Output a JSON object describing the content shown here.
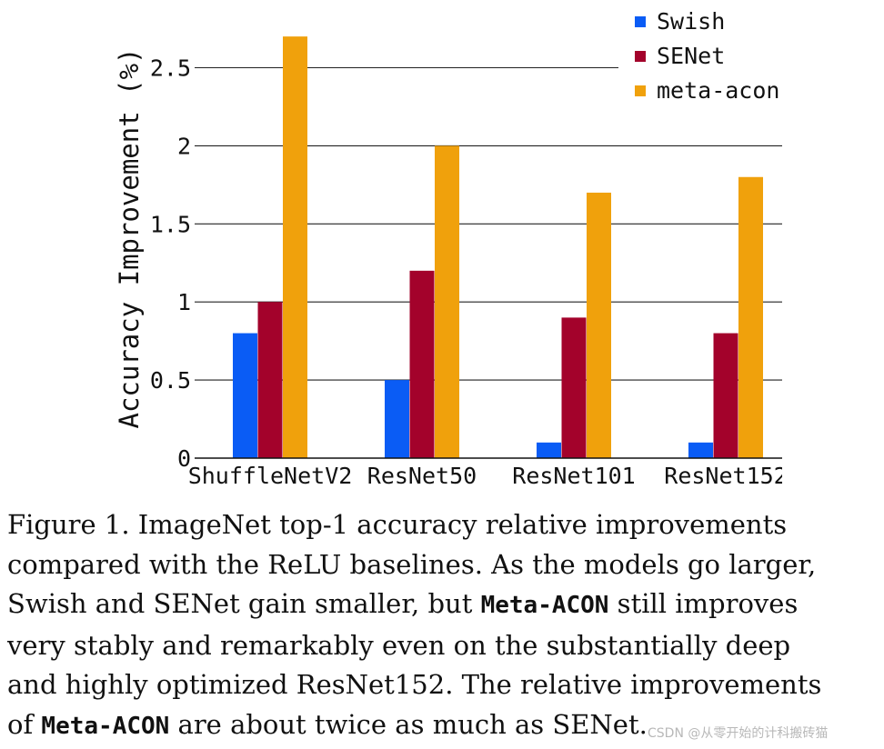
{
  "chart_data": {
    "type": "bar",
    "title": "",
    "xlabel": "",
    "ylabel": "Accuracy Improvement (%)",
    "ylim": [
      0,
      2.7
    ],
    "yticks": [
      0,
      0.5,
      1,
      1.5,
      2,
      2.5
    ],
    "ytick_labels": [
      "0",
      "0.5",
      "1",
      "1.5",
      "2",
      "2.5"
    ],
    "categories": [
      "ShuffleNetV2",
      "ResNet50",
      "ResNet101",
      "ResNet152"
    ],
    "series": [
      {
        "name": "Swish",
        "color": "#0a5cf5",
        "values": [
          0.8,
          0.5,
          0.1,
          0.1
        ]
      },
      {
        "name": "SENet",
        "color": "#a3022b",
        "values": [
          1.0,
          1.2,
          0.9,
          0.8
        ]
      },
      {
        "name": "meta-acon",
        "color": "#f0a10c",
        "values": [
          2.7,
          2.0,
          1.7,
          1.8
        ]
      }
    ],
    "grid": "horizontal",
    "legend_position": "top-right"
  },
  "caption": {
    "line1": "Figure 1. ImageNet top-1 accuracy relative improvements",
    "line2": "compared with the ReLU baselines.  As the models go larger,",
    "line3_pre": "Swish and SENet gain smaller, but ",
    "line3_code": "Meta-ACON",
    "line3_post": " still improves",
    "line4": "very stably and remarkably even on the substantially deep",
    "line5": "and highly optimized ResNet152.  The relative improvements",
    "line6_pre": "of ",
    "line6_code": "Meta-ACON",
    "line6_post": " are about twice as much as SENet."
  },
  "watermark": "CSDN @从零开始的计科搬砖猫"
}
